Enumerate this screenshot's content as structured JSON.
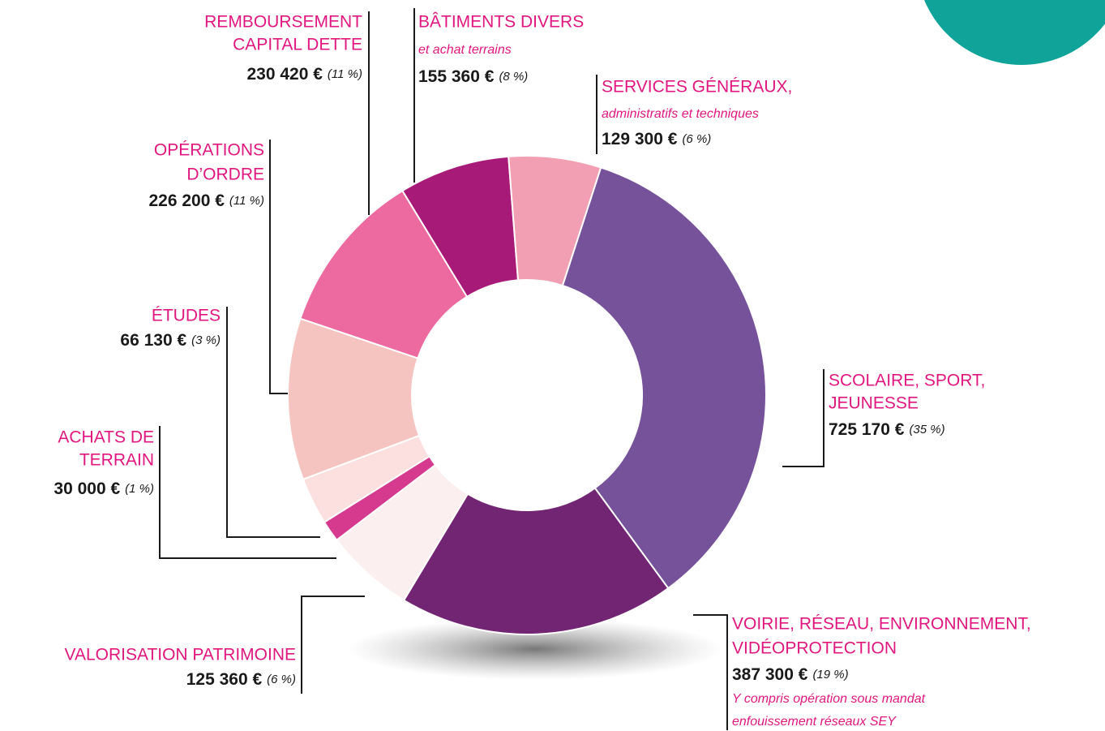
{
  "chart_data": {
    "type": "donut",
    "series": [
      {
        "name_lines": [
          "SCOLAIRE, SPORT,",
          "JEUNESSE"
        ],
        "color": "#76529a",
        "value": 725170,
        "value_label": "725 170 €",
        "percentage": 35,
        "percentage_label": "(35 %)"
      },
      {
        "name_lines": [
          "VOIRIE, RÉSEAU, ENVIRONNEMENT,",
          "VIDÉOPROTECTION"
        ],
        "color": "#722573",
        "value": 387300,
        "value_label": "387 300 €",
        "percentage": 19,
        "percentage_label": "(19 %)",
        "note_lines": [
          "Y compris opération sous mandat",
          "enfouissement réseaux SEY"
        ]
      },
      {
        "name_lines": [
          "VALORISATION PATRIMOINE"
        ],
        "color": "#fcefef",
        "value": 125360,
        "value_label": "125 360 €",
        "percentage": 6,
        "percentage_label": "(6 %)"
      },
      {
        "name_lines": [
          "ACHATS DE",
          "TERRAIN"
        ],
        "color": "#d63a8f",
        "value": 30000,
        "value_label": "30 000 €",
        "percentage": 1,
        "percentage_label": "(1 %)"
      },
      {
        "name_lines": [
          "ÉTUDES"
        ],
        "color": "#fbe0df",
        "value": 66130,
        "value_label": "66 130 €",
        "percentage": 3,
        "percentage_label": "(3 %)"
      },
      {
        "name_lines": [
          "OPÉRATIONS",
          "D’ORDRE"
        ],
        "color": "#f6c4c0",
        "value": 226200,
        "value_label": "226 200 €",
        "percentage": 11,
        "percentage_label": "(11 %)"
      },
      {
        "name_lines": [
          "REMBOURSEMENT",
          "CAPITAL DETTE"
        ],
        "color": "#ec6aa0",
        "value": 230420,
        "value_label": "230 420 €",
        "percentage": 11,
        "percentage_label": "(11 %)"
      },
      {
        "name_lines": [
          "BÂTIMENTS DIVERS"
        ],
        "color": "#a81a78",
        "value": 155360,
        "value_label": "155 360 €",
        "percentage": 8,
        "percentage_label": "(8 %)",
        "note_lines": [
          "et achat terrains"
        ]
      },
      {
        "name_lines": [
          "SERVICES GÉNÉRAUX,"
        ],
        "color": "#f29fb3",
        "value": 129300,
        "value_label": "129 300 €",
        "percentage": 6,
        "percentage_label": "(6 %)",
        "note_lines": [
          "administratifs et techniques"
        ]
      }
    ]
  }
}
